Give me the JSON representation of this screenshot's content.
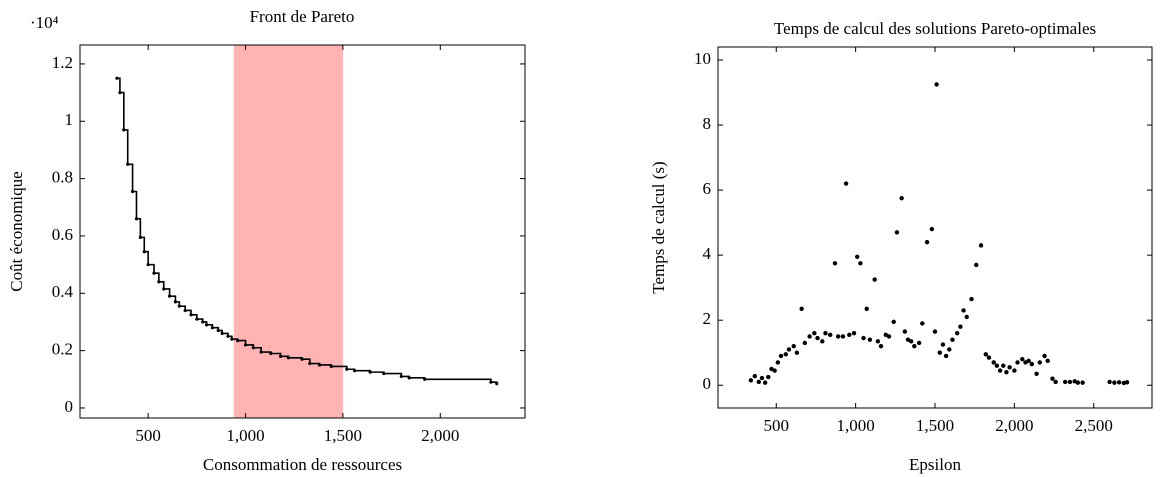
{
  "chart_data": [
    {
      "type": "step",
      "title": "Front de Pareto",
      "scale_label": "·10⁴",
      "xlabel": "Consommation de ressources",
      "ylabel": "Coût économique",
      "color": "#000000",
      "highlight": {
        "range": [
          940,
          1500
        ],
        "color": "#ffb3b3"
      },
      "x": [
        340,
        355,
        375,
        395,
        420,
        440,
        460,
        480,
        500,
        530,
        555,
        580,
        610,
        640,
        660,
        690,
        720,
        750,
        780,
        800,
        830,
        860,
        880,
        910,
        930,
        960,
        1000,
        1040,
        1080,
        1130,
        1180,
        1220,
        1290,
        1330,
        1380,
        1440,
        1520,
        1560,
        1640,
        1710,
        1800,
        1840,
        1920,
        2260,
        2290
      ],
      "values": [
        1.15,
        1.1,
        0.97,
        0.85,
        0.755,
        0.66,
        0.595,
        0.545,
        0.5,
        0.47,
        0.44,
        0.415,
        0.39,
        0.37,
        0.355,
        0.34,
        0.325,
        0.31,
        0.3,
        0.29,
        0.28,
        0.27,
        0.26,
        0.25,
        0.24,
        0.235,
        0.22,
        0.21,
        0.195,
        0.19,
        0.18,
        0.175,
        0.17,
        0.155,
        0.15,
        0.145,
        0.135,
        0.13,
        0.125,
        0.12,
        0.11,
        0.105,
        0.1,
        0.09,
        0.085
      ],
      "xlim": [
        150,
        2435
      ],
      "ylim": [
        -0.035,
        1.266
      ],
      "xticks": [
        500,
        {
          "value": 1000,
          "label": "1,000"
        },
        {
          "value": 1500,
          "label": "1,500"
        },
        {
          "value": 2000,
          "label": "2,000"
        }
      ],
      "yticks": [
        0,
        0.2,
        0.4,
        0.6,
        0.8,
        1,
        1.2
      ]
    },
    {
      "type": "scatter",
      "title": "Temps de calcul des solutions Pareto-optimales",
      "xlabel": "Epsilon",
      "ylabel": "Temps de calcul (s)",
      "color": "#000000",
      "x": [
        340,
        365,
        390,
        410,
        430,
        450,
        470,
        490,
        510,
        530,
        560,
        580,
        610,
        630,
        660,
        680,
        710,
        740,
        760,
        790,
        810,
        840,
        870,
        890,
        920,
        940,
        960,
        990,
        1010,
        1030,
        1050,
        1070,
        1090,
        1120,
        1140,
        1160,
        1190,
        1210,
        1240,
        1260,
        1290,
        1310,
        1330,
        1350,
        1370,
        1400,
        1420,
        1450,
        1480,
        1510,
        1500,
        1530,
        1550,
        1570,
        1590,
        1610,
        1640,
        1660,
        1680,
        1700,
        1730,
        1760,
        1790,
        1820,
        1840,
        1870,
        1890,
        1910,
        1930,
        1950,
        1970,
        2000,
        2020,
        2050,
        2070,
        2090,
        2110,
        2140,
        2160,
        2190,
        2210,
        2240,
        2260,
        2320,
        2350,
        2380,
        2400,
        2430,
        2600,
        2630,
        2660,
        2690,
        2710
      ],
      "values": [
        0.15,
        0.28,
        0.1,
        0.22,
        0.08,
        0.25,
        0.5,
        0.45,
        0.7,
        0.9,
        0.95,
        1.1,
        1.2,
        1.0,
        2.35,
        1.3,
        1.5,
        1.6,
        1.45,
        1.35,
        1.6,
        1.55,
        3.75,
        1.5,
        1.5,
        6.2,
        1.55,
        1.6,
        3.95,
        3.75,
        1.45,
        2.35,
        1.4,
        3.25,
        1.35,
        1.2,
        1.55,
        1.5,
        1.95,
        4.7,
        5.75,
        1.65,
        1.4,
        1.35,
        1.2,
        1.3,
        1.9,
        4.4,
        4.8,
        9.25,
        1.65,
        1.0,
        1.25,
        0.9,
        1.1,
        1.4,
        1.6,
        1.8,
        2.3,
        2.1,
        2.65,
        3.7,
        4.3,
        0.95,
        0.85,
        0.7,
        0.6,
        0.45,
        0.6,
        0.4,
        0.55,
        0.45,
        0.7,
        0.8,
        0.7,
        0.75,
        0.65,
        0.35,
        0.7,
        0.9,
        0.75,
        0.2,
        0.1,
        0.1,
        0.1,
        0.12,
        0.08,
        0.08,
        0.1,
        0.08,
        0.09,
        0.07,
        0.09
      ],
      "xlim": [
        133,
        2867
      ],
      "ylim": [
        -0.7,
        10.4
      ],
      "xticks": [
        500,
        {
          "value": 1000,
          "label": "1,000"
        },
        {
          "value": 1500,
          "label": "1,500"
        },
        {
          "value": 2000,
          "label": "2,000"
        },
        {
          "value": 2500,
          "label": "2,500"
        }
      ],
      "yticks": [
        0,
        2,
        4,
        6,
        8,
        10
      ]
    }
  ]
}
